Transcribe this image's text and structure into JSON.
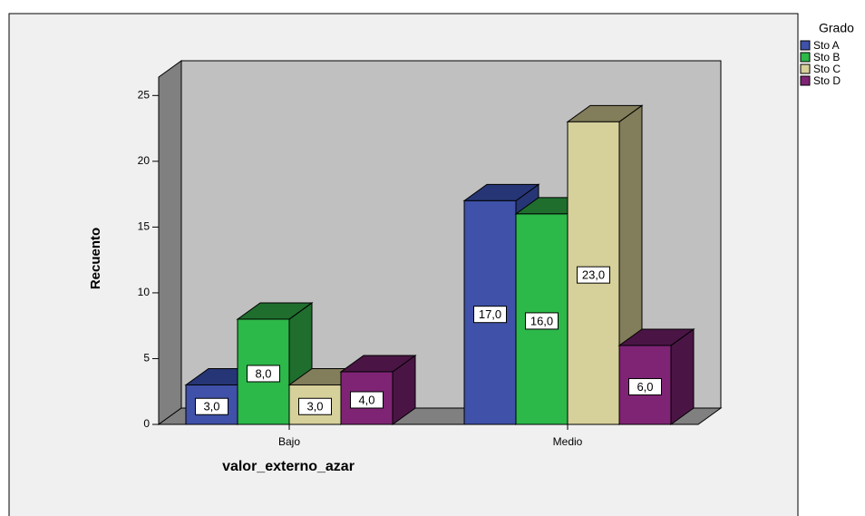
{
  "chart_data": {
    "type": "bar3d",
    "x_label": "valor_externo_azar",
    "y_label": "Recuento",
    "legend_title": "Grado",
    "categories": [
      "Bajo",
      "Medio"
    ],
    "series": [
      {
        "name": "Sto A",
        "color": "#3f51a8",
        "side": "#263575",
        "values": [
          3,
          17
        ],
        "value_labels": [
          "3,0",
          "17,0"
        ]
      },
      {
        "name": "Sto B",
        "color": "#2db84a",
        "side": "#1f6e2e",
        "values": [
          8,
          16
        ],
        "value_labels": [
          "8,0",
          "16,0"
        ]
      },
      {
        "name": "Sto C",
        "color": "#d6d09a",
        "side": "#827d5a",
        "values": [
          3,
          23
        ],
        "value_labels": [
          "3,0",
          "23,0"
        ]
      },
      {
        "name": "Sto D",
        "color": "#7f2475",
        "side": "#4a1545",
        "values": [
          4,
          6
        ],
        "value_labels": [
          "4,0",
          "6,0"
        ]
      }
    ],
    "ylim": [
      0,
      26.4
    ],
    "yticks": [
      0,
      5,
      10,
      15,
      20,
      25
    ]
  }
}
